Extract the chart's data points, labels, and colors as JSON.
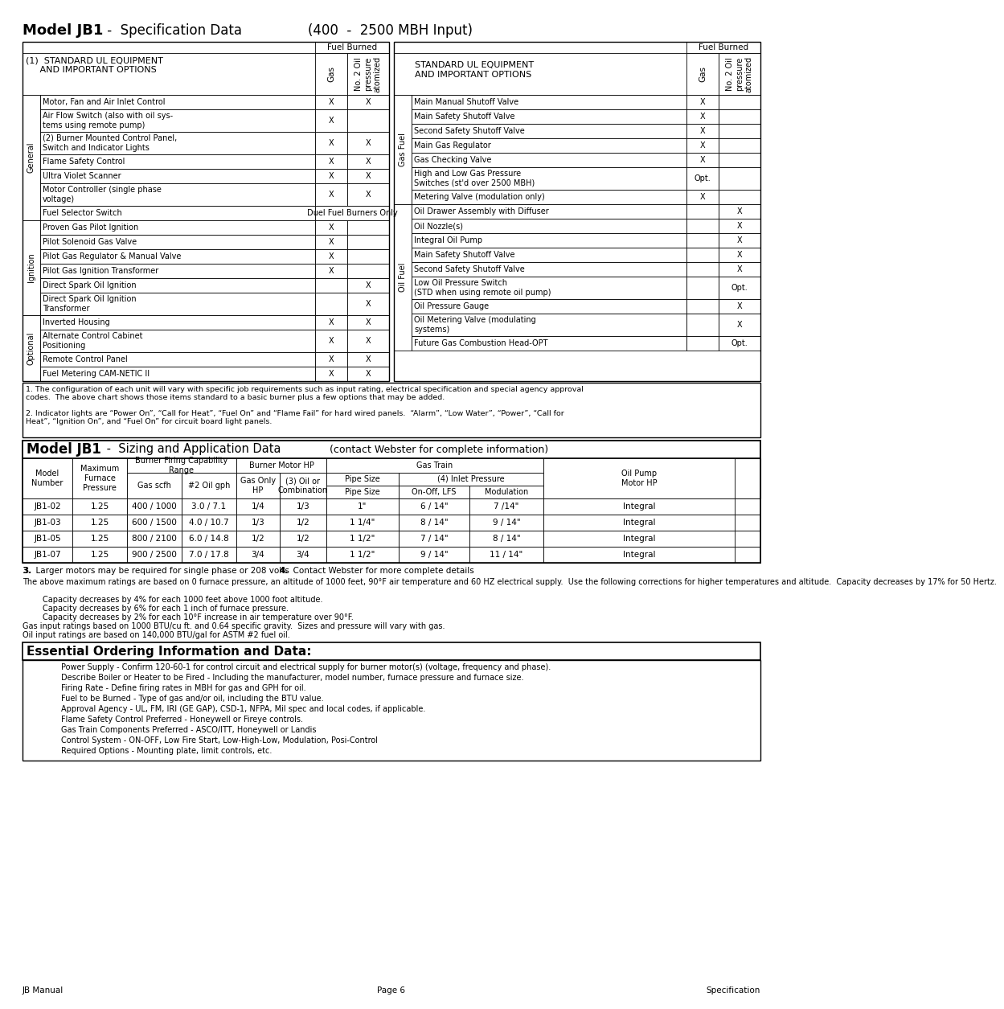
{
  "spec_table_left": {
    "sections": [
      {
        "label": "General",
        "rows": [
          {
            "text": "Motor, Fan and Air Inlet Control",
            "gas": "X",
            "oil": "X",
            "double": false
          },
          {
            "text": "Air Flow Switch (also with oil sys-\ntems using remote pump)",
            "gas": "X",
            "oil": "",
            "double": true
          },
          {
            "text": "(2) Burner Mounted Control Panel,\nSwitch and Indicator Lights",
            "gas": "X",
            "oil": "X",
            "double": true
          },
          {
            "text": "Flame Safety Control",
            "gas": "X",
            "oil": "X",
            "double": false
          },
          {
            "text": "Ultra Violet Scanner",
            "gas": "X",
            "oil": "X",
            "double": false
          },
          {
            "text": "Motor Controller (single phase\nvoltage)",
            "gas": "X",
            "oil": "X",
            "double": true
          },
          {
            "text": "Fuel Selector Switch",
            "gas": "Duel Fuel Burners Only",
            "oil": "",
            "double": false,
            "span": true
          }
        ]
      },
      {
        "label": "Ignition",
        "rows": [
          {
            "text": "Proven Gas Pilot Ignition",
            "gas": "X",
            "oil": "",
            "double": false
          },
          {
            "text": "Pilot Solenoid Gas Valve",
            "gas": "X",
            "oil": "",
            "double": false
          },
          {
            "text": "Pilot Gas Regulator & Manual Valve",
            "gas": "X",
            "oil": "",
            "double": false
          },
          {
            "text": "Pilot Gas Ignition Transformer",
            "gas": "X",
            "oil": "",
            "double": false
          },
          {
            "text": "Direct Spark Oil Ignition",
            "gas": "",
            "oil": "X",
            "double": false
          },
          {
            "text": "Direct Spark Oil Ignition\nTransformer",
            "gas": "",
            "oil": "X",
            "double": true
          }
        ]
      },
      {
        "label": "Optional",
        "rows": [
          {
            "text": "Inverted Housing",
            "gas": "X",
            "oil": "X",
            "double": false
          },
          {
            "text": "Alternate Control Cabinet\nPositioning",
            "gas": "X",
            "oil": "X",
            "double": true
          },
          {
            "text": "Remote Control Panel",
            "gas": "X",
            "oil": "X",
            "double": false
          },
          {
            "text": "Fuel Metering CAM-NETIC II",
            "gas": "X",
            "oil": "X",
            "double": false
          }
        ]
      }
    ]
  },
  "spec_table_right": {
    "sections": [
      {
        "label": "Gas Fuel",
        "rows": [
          {
            "text": "Main Manual Shutoff Valve",
            "gas": "X",
            "oil": "",
            "double": false
          },
          {
            "text": "Main Safety Shutoff Valve",
            "gas": "X",
            "oil": "",
            "double": false
          },
          {
            "text": "Second Safety Shutoff Valve",
            "gas": "X",
            "oil": "",
            "double": false
          },
          {
            "text": "Main Gas Regulator",
            "gas": "X",
            "oil": "",
            "double": false
          },
          {
            "text": "Gas Checking Valve",
            "gas": "X",
            "oil": "",
            "double": false
          },
          {
            "text": "High and Low Gas Pressure\nSwitches (st'd over 2500 MBH)",
            "gas": "Opt.",
            "oil": "",
            "double": true
          },
          {
            "text": "Metering Valve (modulation only)",
            "gas": "X",
            "oil": "",
            "double": false
          }
        ]
      },
      {
        "label": "Oil Fuel",
        "rows": [
          {
            "text": "Oil Drawer Assembly with Diffuser",
            "gas": "",
            "oil": "X",
            "double": false
          },
          {
            "text": "Oil Nozzle(s)",
            "gas": "",
            "oil": "X",
            "double": false
          },
          {
            "text": "Integral Oil Pump",
            "gas": "",
            "oil": "X",
            "double": false
          },
          {
            "text": "Main Safety Shutoff Valve",
            "gas": "",
            "oil": "X",
            "double": false
          },
          {
            "text": "Second Safety Shutoff Valve",
            "gas": "",
            "oil": "X",
            "double": false
          },
          {
            "text": "Low Oil Pressure Switch\n(STD when using remote oil pump)",
            "gas": "",
            "oil": "Opt.",
            "double": true
          },
          {
            "text": "Oil Pressure Gauge",
            "gas": "",
            "oil": "X",
            "double": false
          },
          {
            "text": "Oil Metering Valve (modulating\nsystems)",
            "gas": "",
            "oil": "X",
            "double": true
          },
          {
            "text": "Future Gas Combustion Head-OPT",
            "gas": "",
            "oil": "Opt.",
            "double": false
          }
        ]
      }
    ]
  },
  "footnote1": "1. The configuration of each unit will vary with specific job requirements such as input rating, electrical specification and special agency approval\ncodes.  The above chart shows those items standard to a basic burner plus a few options that may be added.",
  "footnote2": "2. Indicator lights are “Power On”, “Call for Heat”, “Fuel On” and “Flame Fail” for hard wired panels.  “Alarm”, “Low Water”, “Power”, “Call for\nHeat”, “Ignition On”, and “Fuel On” for circuit board light panels.",
  "sizing_rows": [
    [
      "JB1-02",
      "1.25",
      "400 / 1000",
      "3.0 / 7.1",
      "1/4",
      "1/3",
      "1\"",
      "6 / 14\"",
      "7 /14\"",
      "Integral"
    ],
    [
      "JB1-03",
      "1.25",
      "600 / 1500",
      "4.0 / 10.7",
      "1/3",
      "1/2",
      "1 1/4\"",
      "8 / 14\"",
      "9 / 14\"",
      "Integral"
    ],
    [
      "JB1-05",
      "1.25",
      "800 / 2100",
      "6.0 / 14.8",
      "1/2",
      "1/2",
      "1 1/2\"",
      "7 / 14\"",
      "8 / 14\"",
      "Integral"
    ],
    [
      "JB1-07",
      "1.25",
      "900 / 2500",
      "7.0 / 17.8",
      "3/4",
      "3/4",
      "1 1/2\"",
      "9 / 14\"",
      "11 / 14\"",
      "Integral"
    ]
  ],
  "footnote3": "3.  Larger motors may be required for single phase or 208 volts",
  "footnote4": "4.  Contact Webster for more complete details",
  "para1": "The above maximum ratings are based on 0 furnace pressure, an altitude of 1000 feet, 90°F air temperature and 60 HZ electrical supply.  Use the following corrections for higher temperatures and altitude.  Capacity decreases by 17% for 50 Hertz.",
  "para2a": "        Capacity decreases by 4% for each 1000 feet above 1000 foot altitude.",
  "para2b": "        Capacity decreases by 6% for each 1 inch of furnace pressure.",
  "para2c": "        Capacity decreases by 2% for each 10°F increase in air temperature over 90°F.",
  "para2d": "Gas input ratings based on 1000 BTU/cu ft. and 0.64 specific gravity.  Sizes and pressure will vary with gas.",
  "para2e": "Oil input ratings are based on 140,000 BTU/gal for ASTM #2 fuel oil.",
  "essential_items": [
    "Power Supply - Confirm 120-60-1 for control circuit and electrical supply for burner motor(s) (voltage, frequency and phase).",
    "Describe Boiler or Heater to be Fired - Including the manufacturer, model number, furnace pressure and furnace size.",
    "Firing Rate - Define firing rates in MBH for gas and GPH for oil.",
    "Fuel to be Burned - Type of gas and/or oil, including the BTU value.",
    "Approval Agency - UL, FM, IRI (GE GAP), CSD-1, NFPA, Mil spec and local codes, if applicable.",
    "Flame Safety Control Preferred - Honeywell or Fireye controls.",
    "Gas Train Components Preferred - ASCO/ITT, Honeywell or Landis",
    "Control System - ON-OFF, Low Fire Start, Low-High-Low, Modulation, Posi-Control",
    "Required Options - Mounting plate, limit controls, etc."
  ]
}
